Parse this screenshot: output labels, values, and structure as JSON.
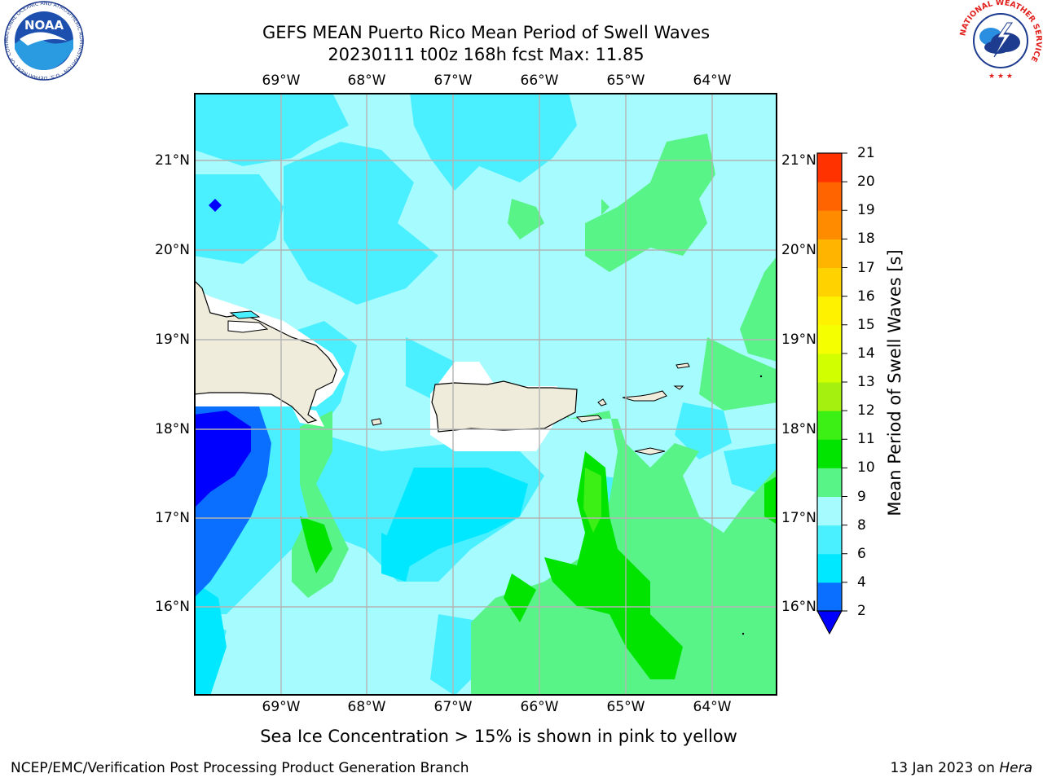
{
  "title": {
    "line1": "GEFS MEAN Puerto Rico Mean Period of Swell Waves",
    "line2": "20230111 t00z 168h fcst   Max: 11.85"
  },
  "map": {
    "lon_labels": [
      "69°W",
      "68°W",
      "67°W",
      "66°W",
      "65°W",
      "64°W"
    ],
    "lat_labels": [
      "21°N",
      "20°N",
      "19°N",
      "18°N",
      "17°N",
      "16°N"
    ],
    "colors": {
      "land": "#efecdc",
      "masked": "#ffffff",
      "grid": "#b4b4b4"
    }
  },
  "colorbar": {
    "title": "Mean Period of Swell Waves [s]",
    "levels": [
      "2",
      "4",
      "6",
      "8",
      "9",
      "10",
      "11",
      "12",
      "13",
      "14",
      "15",
      "16",
      "17",
      "18",
      "19",
      "20",
      "21"
    ],
    "colors": [
      "#0a6fff",
      "#00e8ff",
      "#4af0ff",
      "#a6fbff",
      "#58f488",
      "#00e400",
      "#3cef14",
      "#a6f010",
      "#d2ff00",
      "#f6ff00",
      "#fff200",
      "#ffd200",
      "#ffb400",
      "#ff8c00",
      "#ff6400",
      "#ff3200"
    ],
    "under_color": "#0000ff"
  },
  "note": "Sea Ice Concentration > 15% is shown in pink to yellow",
  "footer": {
    "left": "NCEP/EMC/Verification Post Processing Product Generation Branch",
    "right_prefix": "13 Jan 2023 on",
    "right_host": "Hera"
  },
  "logos": {
    "noaa_text": "NOAA",
    "noaa_ring_text": "NATIONAL OCEANIC AND ATMOSPHERIC ADMINISTRATION · U.S. DEPARTMENT OF COMMERCE",
    "nws_ring_text": "NATIONAL WEATHER SERVICE"
  }
}
